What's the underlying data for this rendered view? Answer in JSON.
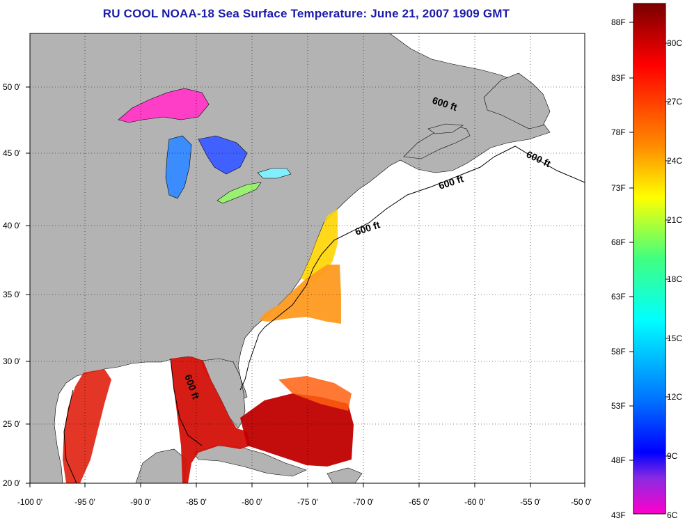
{
  "title": "RU COOL  NOAA-18  Sea Surface Temperature:  June 21, 2007 1909 GMT",
  "map": {
    "lon_ticks": [
      "-100 0'",
      "-95 0'",
      "-90 0'",
      "-85 0'",
      "-80 0'",
      "-75 0'",
      "-70 0'",
      "-65 0'",
      "-60 0'",
      "-55 0'",
      "-50 0'"
    ],
    "lat_ticks": [
      "50 0'",
      "45 0'",
      "40 0'",
      "35 0'",
      "30 0'",
      "25 0'",
      "20 0'"
    ],
    "contour_labels": [
      "600 ft",
      "600 ft",
      "600 ft",
      "600 ft",
      "600 ft"
    ],
    "colors": {
      "land": "#b3b3b3",
      "ocean_nodata": "#ffffff"
    }
  },
  "colorbar": {
    "fahrenheit_labels": [
      "88F",
      "83F",
      "78F",
      "73F",
      "68F",
      "63F",
      "58F",
      "53F",
      "48F",
      "43F"
    ],
    "celsius_labels": [
      "30C",
      "27C",
      "24C",
      "21C",
      "18C",
      "15C",
      "12C",
      "9C",
      "6C"
    ],
    "gradient_stops": [
      "#8b0000",
      "#ff0000",
      "#ff8800",
      "#ffff00",
      "#00ff88",
      "#00ffff",
      "#0088ff",
      "#0000ff",
      "#8800ff",
      "#ff00cc"
    ]
  }
}
